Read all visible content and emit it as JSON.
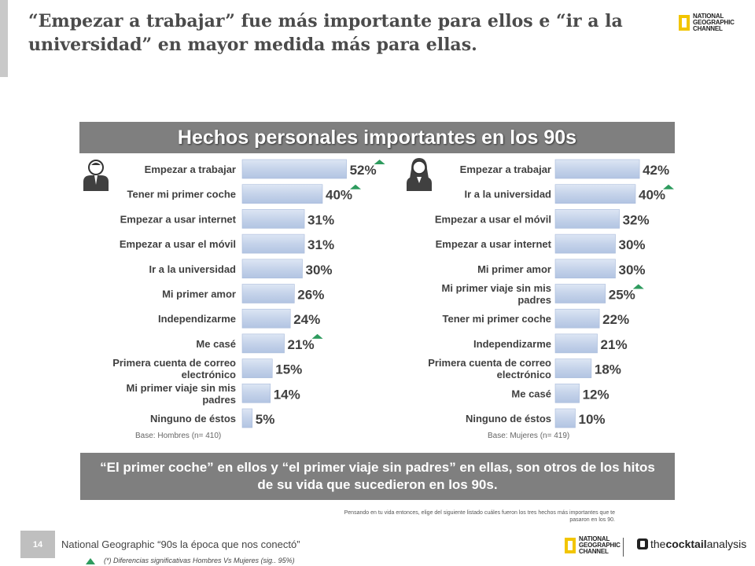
{
  "slide": {
    "title": "“Empezar a trabajar” fue más importante para ellos e “ir a la universidad” en mayor medida más para ellas.",
    "brand_logo": [
      "NATIONAL",
      "GEOGRAPHIC",
      "CHANNEL"
    ],
    "conclusion": "“El primer coche” en ellos y “el primer viaje sin padres” en ellas, son otros de los hitos de su vida que sucedieron en los 90s.",
    "question": "Pensando en tu vida entonces, elige del siguiente listado cuáles fueron los tres hechos más importantes que te pasaron en los 90.",
    "page_number": "14",
    "footer": "National Geographic “90s la época que nos conectó”",
    "footnote": "(*) Diferencias significativas Hombres Vs Mujeres (sig.. 95%)",
    "partner": {
      "part1": "the ",
      "part2": "cocktail",
      "part3": " analysis"
    },
    "colors": {
      "bar": "#c5d3ea",
      "bar_edge": "#a9bbdb",
      "sig_arrow": "#2e9b5e",
      "header_bg": "#7f7f7f"
    }
  },
  "chart_data": [
    {
      "type": "bar",
      "orientation": "horizontal",
      "title": "Hechos personales importantes en los 90s",
      "group_icon": "man-icon",
      "base": "Base: Hombres  (n= 410)",
      "categories": [
        "Empezar a trabajar",
        "Tener mi primer coche",
        "Empezar a usar internet",
        "Empezar a usar el móvil",
        "Ir a la universidad",
        "Mi primer amor",
        "Independizarme",
        "Me casé",
        "Primera cuenta de correo electrónico",
        "Mi primer viaje sin mis padres",
        "Ninguno de éstos"
      ],
      "values": [
        52,
        40,
        31,
        31,
        30,
        26,
        24,
        21,
        15,
        14,
        5
      ],
      "labels": [
        "52%",
        "40%",
        "31%",
        "31%",
        "30%",
        "26%",
        "24%",
        "21%",
        "15%",
        "14%",
        "5%"
      ],
      "significant": [
        true,
        true,
        false,
        false,
        false,
        false,
        false,
        true,
        false,
        false,
        false
      ]
    },
    {
      "type": "bar",
      "orientation": "horizontal",
      "group_icon": "woman-icon",
      "base": "Base: Mujeres  (n= 419)",
      "categories": [
        "Empezar a trabajar",
        "Ir a la universidad",
        "Empezar a usar el móvil",
        "Empezar a usar internet",
        "Mi primer amor",
        "Mi primer viaje sin mis padres",
        "Tener mi primer coche",
        "Independizarme",
        "Primera cuenta de correo electrónico",
        "Me casé",
        "Ninguno de éstos"
      ],
      "values": [
        42,
        40,
        32,
        30,
        30,
        25,
        22,
        21,
        18,
        12,
        10
      ],
      "labels": [
        "42%",
        "40%",
        "32%",
        "30%",
        "30%",
        "25%",
        "22%",
        "21%",
        "18%",
        "12%",
        "10%"
      ],
      "significant": [
        false,
        true,
        false,
        false,
        false,
        true,
        false,
        false,
        false,
        false,
        false
      ]
    }
  ]
}
